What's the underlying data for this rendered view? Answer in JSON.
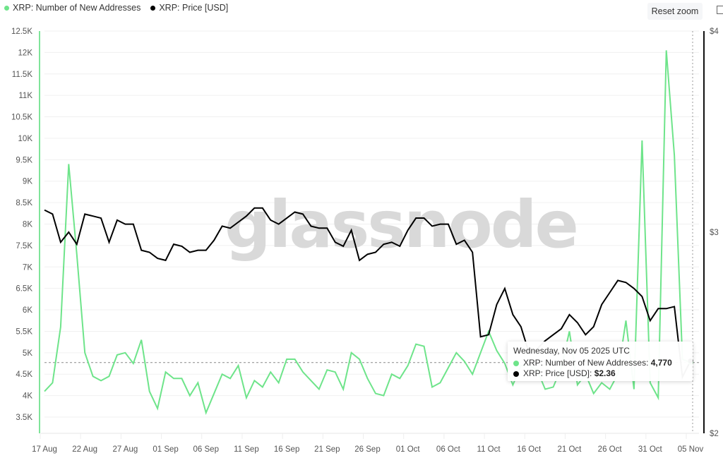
{
  "legend": {
    "items": [
      {
        "label": "XRP: Number of New Addresses",
        "color": "#6ee48a"
      },
      {
        "label": "XRP: Price [USD]",
        "color": "#000000"
      }
    ]
  },
  "toolbar": {
    "reset_zoom_label": "Reset zoom"
  },
  "watermark": "glassnode",
  "tooltip": {
    "title": "Wednesday, Nov 05 2025 UTC",
    "rows": [
      {
        "label": "XRP: Number of New Addresses: ",
        "value": "4,770",
        "color": "#6ee48a"
      },
      {
        "label": "XRP: Price [USD]: ",
        "value": "$2.36",
        "color": "#000000"
      }
    ]
  },
  "chart_data": {
    "type": "line",
    "title": "",
    "xlabel": "",
    "ylabel": "",
    "x_tick_labels": [
      "17 Aug",
      "22 Aug",
      "27 Aug",
      "01 Sep",
      "06 Sep",
      "11 Sep",
      "16 Sep",
      "21 Sep",
      "26 Sep",
      "01 Oct",
      "06 Oct",
      "11 Oct",
      "16 Oct",
      "21 Oct",
      "26 Oct",
      "31 Oct",
      "05 Nov"
    ],
    "y_left": {
      "label": "Number of New Addresses",
      "ticks": [
        "12.5K",
        "12K",
        "11.5K",
        "11K",
        "10.5K",
        "10K",
        "9.5K",
        "9K",
        "8.5K",
        "8K",
        "7.5K",
        "7K",
        "6.5K",
        "6K",
        "5.5K",
        "5K",
        "4.5K",
        "4K",
        "3.5K"
      ],
      "range": [
        3500,
        12500
      ]
    },
    "y_right": {
      "label": "Price [USD]",
      "ticks": [
        "$4",
        "$3",
        "$2"
      ],
      "range": [
        2,
        4
      ]
    },
    "grid": true,
    "legend_position": "top-left",
    "reference_line": {
      "axis": "left",
      "value": 4770,
      "style": "dashed"
    },
    "x": [
      "Aug 17",
      "Aug 18",
      "Aug 19",
      "Aug 20",
      "Aug 21",
      "Aug 22",
      "Aug 23",
      "Aug 24",
      "Aug 25",
      "Aug 26",
      "Aug 27",
      "Aug 28",
      "Aug 29",
      "Aug 30",
      "Aug 31",
      "Sep 01",
      "Sep 02",
      "Sep 03",
      "Sep 04",
      "Sep 05",
      "Sep 06",
      "Sep 07",
      "Sep 08",
      "Sep 09",
      "Sep 10",
      "Sep 11",
      "Sep 12",
      "Sep 13",
      "Sep 14",
      "Sep 15",
      "Sep 16",
      "Sep 17",
      "Sep 18",
      "Sep 19",
      "Sep 20",
      "Sep 21",
      "Sep 22",
      "Sep 23",
      "Sep 24",
      "Sep 25",
      "Sep 26",
      "Sep 27",
      "Sep 28",
      "Sep 29",
      "Sep 30",
      "Oct 01",
      "Oct 02",
      "Oct 03",
      "Oct 04",
      "Oct 05",
      "Oct 06",
      "Oct 07",
      "Oct 08",
      "Oct 09",
      "Oct 10",
      "Oct 11",
      "Oct 12",
      "Oct 13",
      "Oct 14",
      "Oct 15",
      "Oct 16",
      "Oct 17",
      "Oct 18",
      "Oct 19",
      "Oct 20",
      "Oct 21",
      "Oct 22",
      "Oct 23",
      "Oct 24",
      "Oct 25",
      "Oct 26",
      "Oct 27",
      "Oct 28",
      "Oct 29",
      "Oct 30",
      "Oct 31",
      "Nov 01",
      "Nov 02",
      "Nov 03",
      "Nov 04",
      "Nov 05"
    ],
    "series": [
      {
        "name": "XRP: Number of New Addresses",
        "axis": "left",
        "color": "#6ee48a",
        "values": [
          4100,
          4300,
          5600,
          9400,
          7300,
          5000,
          4450,
          4350,
          4450,
          4950,
          5000,
          4750,
          5300,
          4100,
          3700,
          4550,
          4400,
          4400,
          4000,
          4300,
          3600,
          4050,
          4500,
          4400,
          4700,
          3950,
          4350,
          4200,
          4550,
          4300,
          4850,
          4850,
          4550,
          4350,
          4150,
          4600,
          4550,
          4150,
          5000,
          4850,
          4400,
          4050,
          4000,
          4500,
          4400,
          4700,
          5200,
          5150,
          4200,
          4300,
          4650,
          5000,
          4800,
          4500,
          5000,
          5500,
          5050,
          4750,
          4250,
          4700,
          4700,
          4600,
          4150,
          4200,
          4650,
          5500,
          4250,
          4500,
          4050,
          4300,
          4150,
          4500,
          5750,
          4150,
          9950,
          4300,
          3950,
          12050,
          9600,
          4850,
          4770
        ]
      },
      {
        "name": "XRP: Price [USD]",
        "axis": "right",
        "color": "#000000",
        "values": [
          3.11,
          3.09,
          2.95,
          3.0,
          2.94,
          3.09,
          3.08,
          3.07,
          2.95,
          3.06,
          3.04,
          3.04,
          2.91,
          2.9,
          2.87,
          2.86,
          2.94,
          2.93,
          2.9,
          2.91,
          2.91,
          2.96,
          3.03,
          3.02,
          3.05,
          3.08,
          3.12,
          3.12,
          3.06,
          3.04,
          3.07,
          3.1,
          3.09,
          3.03,
          3.02,
          3.02,
          2.95,
          2.93,
          3.01,
          2.86,
          2.89,
          2.9,
          2.94,
          2.95,
          2.93,
          3.01,
          3.07,
          3.07,
          3.03,
          3.04,
          3.04,
          2.94,
          2.96,
          2.9,
          2.48,
          2.49,
          2.64,
          2.72,
          2.59,
          2.53,
          2.4,
          2.42,
          2.46,
          2.49,
          2.52,
          2.59,
          2.55,
          2.49,
          2.53,
          2.64,
          2.7,
          2.76,
          2.75,
          2.72,
          2.68,
          2.56,
          2.62,
          2.62,
          2.63,
          2.28,
          2.36
        ]
      }
    ]
  }
}
